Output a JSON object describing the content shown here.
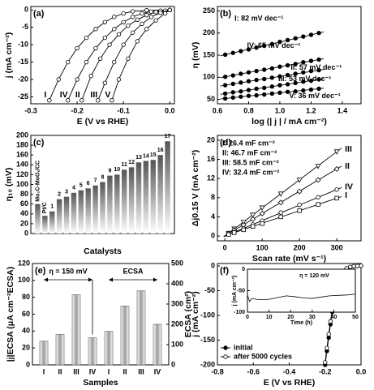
{
  "chart_data": [
    {
      "type": "line",
      "label": "(a)",
      "xlabel": "E (V vs RHE)",
      "ylabel": "j (mA cm⁻²)",
      "xlim": [
        -0.3,
        0.01
      ],
      "xticks": [
        -0.3,
        -0.2,
        -0.1,
        {
          "value": 0,
          "label": "0.0"
        }
      ],
      "ylim": [
        -27,
        1
      ],
      "yticks": [
        -25,
        -20,
        -15,
        -10,
        -5,
        0
      ],
      "series": [
        {
          "name": "I",
          "color": "#000",
          "marker": "open-circle",
          "x": [
            -0.26,
            -0.24,
            -0.22,
            -0.2,
            -0.18,
            -0.16,
            -0.14,
            -0.12,
            -0.1,
            -0.08,
            -0.05,
            0
          ],
          "values": [
            -26,
            -20,
            -15,
            -11,
            -8,
            -5.5,
            -3.5,
            -2,
            -1,
            -0.4,
            -0.1,
            0
          ]
        },
        {
          "name": "IV",
          "color": "#000",
          "marker": "open-circle",
          "x": [
            -0.22,
            -0.2,
            -0.18,
            -0.16,
            -0.14,
            -0.12,
            -0.1,
            -0.08,
            -0.06,
            -0.04,
            -0.02,
            0
          ],
          "values": [
            -26,
            -20,
            -15,
            -11,
            -8,
            -5.5,
            -3.5,
            -2,
            -1,
            -0.5,
            -0.2,
            0
          ]
        },
        {
          "name": "II",
          "color": "#000",
          "marker": "open-circle",
          "x": [
            -0.19,
            -0.17,
            -0.15,
            -0.13,
            -0.11,
            -0.09,
            -0.07,
            -0.05,
            -0.03,
            -0.01,
            0
          ],
          "values": [
            -26,
            -19,
            -14,
            -10,
            -7,
            -4.5,
            -2.8,
            -1.5,
            -0.6,
            -0.2,
            0
          ]
        },
        {
          "name": "III",
          "color": "#000",
          "marker": "open-circle",
          "x": [
            -0.155,
            -0.14,
            -0.12,
            -0.1,
            -0.08,
            -0.06,
            -0.04,
            -0.02,
            0
          ],
          "values": [
            -26,
            -21,
            -15,
            -10,
            -6.5,
            -4,
            -2,
            -0.8,
            0
          ]
        },
        {
          "name": "V",
          "color": "#000",
          "marker": "open-circle",
          "x": [
            -0.125,
            -0.11,
            -0.09,
            -0.07,
            -0.05,
            -0.03,
            -0.01,
            0
          ],
          "values": [
            -26,
            -20,
            -14,
            -9,
            -5.5,
            -3,
            -1,
            0
          ]
        }
      ]
    },
    {
      "type": "scatter",
      "label": "(b)",
      "xlabel": "log (| j | / mA cm⁻²)",
      "ylabel": "η (mV)",
      "xlim": [
        0.6,
        1.52
      ],
      "xticks": [
        0.6,
        0.8,
        {
          "value": 1,
          "label": "1.0"
        },
        1.2,
        1.4
      ],
      "ylim": [
        40,
        260
      ],
      "yticks": [
        50,
        100,
        150,
        200,
        250
      ],
      "x": [
        0.65,
        0.7,
        0.75,
        0.8,
        0.85,
        0.9,
        0.95,
        1,
        1.05,
        1.1,
        1.15,
        1.2,
        1.25
      ],
      "annotations": [
        "I: 82 mV dec⁻¹",
        "IV: 65 mV dec⁻¹",
        "II: 57 mV dec⁻¹",
        "III: 53 mV dec⁻¹",
        "V: 36 mV dec⁻¹"
      ],
      "series": [
        {
          "color": "#000",
          "marker": "filled-circle",
          "values": [
            151,
            155,
            159,
            163,
            167,
            171,
            175,
            180,
            184,
            188,
            192,
            196,
            200
          ]
        },
        {
          "color": "#000",
          "marker": "filled-circle",
          "values": [
            101,
            104,
            108,
            111,
            114,
            117,
            120,
            124,
            127,
            130,
            134,
            137,
            140
          ]
        },
        {
          "color": "#000",
          "marker": "filled-circle",
          "values": [
            82,
            85,
            88,
            91,
            94,
            96,
            99,
            102,
            105,
            108,
            111,
            114,
            116
          ]
        },
        {
          "color": "#000",
          "marker": "filled-circle",
          "values": [
            63,
            66,
            68,
            71,
            74,
            76,
            79,
            82,
            84,
            87,
            90,
            92,
            95
          ]
        },
        {
          "color": "#000",
          "marker": "filled-circle",
          "values": [
            52,
            54,
            56,
            58,
            59,
            61,
            63,
            65,
            67,
            68,
            70,
            72,
            74
          ]
        }
      ]
    },
    {
      "type": "bar",
      "label": "(c)",
      "xlabel": "Catalysts",
      "ylabel": "η₁₀ (mV)",
      "color": "#555",
      "ylim": [
        0,
        200
      ],
      "yticks": [
        0,
        20,
        40,
        60,
        80,
        100,
        120,
        140,
        160,
        180,
        200
      ],
      "categories": [
        "Mo₂C-MoOₓ/CC",
        "Pt/C",
        "1",
        "2",
        "3",
        "4",
        "5",
        "6",
        "7",
        "8",
        "9",
        "10",
        "11",
        "12",
        "13",
        "14",
        "15",
        "16",
        "17"
      ],
      "values": [
        60,
        36,
        45,
        70,
        75,
        83,
        88,
        92,
        98,
        105,
        118,
        120,
        130,
        135,
        145,
        148,
        150,
        160,
        188
      ]
    },
    {
      "type": "scatter",
      "label": "(d)",
      "xlabel": "Scan rate (mV s⁻¹)",
      "ylabel": "Δj0.15 V (mA cm⁻²)",
      "xlim": [
        -20,
        365
      ],
      "xticks": [
        0,
        100,
        200,
        300
      ],
      "ylim": [
        -1,
        21
      ],
      "yticks": [
        0,
        4,
        8,
        12,
        16,
        20
      ],
      "x": [
        10,
        25,
        50,
        75,
        100,
        150,
        200,
        250,
        300
      ],
      "annotations": [
        "I: 26.4 mF cm⁻²",
        "II: 46.7 mF cm⁻²",
        "III: 58.5 mF cm⁻²",
        "IV: 32.4 mF cm⁻²"
      ],
      "series": [
        {
          "name": "III",
          "color": "#000",
          "marker": "triangle-down",
          "values": [
            0.6,
            1.5,
            2.9,
            4.4,
            5.9,
            8.8,
            11.7,
            14.6,
            17.6
          ]
        },
        {
          "name": "II",
          "color": "#000",
          "marker": "diamond",
          "values": [
            0.5,
            1.2,
            2.3,
            3.5,
            4.7,
            7,
            9.3,
            11.7,
            14
          ]
        },
        {
          "name": "IV",
          "color": "#000",
          "marker": "open-circle",
          "values": [
            0.3,
            0.8,
            1.6,
            2.4,
            3.2,
            4.9,
            6.5,
            8.1,
            9.7
          ]
        },
        {
          "name": "I",
          "color": "#000",
          "marker": "square",
          "values": [
            0.3,
            0.7,
            1.3,
            2,
            2.6,
            4,
            5.3,
            6.6,
            7.9
          ]
        }
      ]
    },
    {
      "type": "bar",
      "label": "(e)",
      "xlabel": "Samples",
      "ylabel": "|j|ECSA (μA cm⁻²ECSA)",
      "y2label": "ECSA (cm²)",
      "ylim": [
        0,
        120
      ],
      "yticks": [
        0,
        20,
        40,
        60,
        80,
        100,
        120
      ],
      "y2lim": [
        0,
        500
      ],
      "y2ticks": [
        0,
        100,
        200,
        300,
        400,
        500
      ],
      "annotations": [
        "η = 150 mV",
        "ECSA"
      ],
      "categories": [
        "I",
        "II",
        "III",
        "IV",
        "I",
        "II",
        "III",
        "IV"
      ],
      "series": [
        {
          "color": "#999",
          "values": [
            28,
            36,
            83,
            32,
            null,
            null,
            null,
            null
          ]
        },
        {
          "color": "#999",
          "axis": "y2",
          "values": [
            null,
            null,
            null,
            null,
            165,
            290,
            365,
            200
          ]
        }
      ]
    },
    {
      "type": "line",
      "label": "(f)",
      "xlabel": "E (V vs RHE)",
      "ylabel": "j (mA cm⁻²)",
      "legend": "lower left",
      "xlim": [
        -0.8,
        0
      ],
      "xticks": [
        -0.8,
        -0.6,
        -0.4,
        -0.2,
        {
          "value": 0,
          "label": "0.0"
        }
      ],
      "ylim": [
        -200,
        5
      ],
      "yticks": [
        -200,
        -150,
        -100,
        -50,
        0
      ],
      "x": [
        -0.2,
        -0.19,
        -0.18,
        -0.17,
        -0.16,
        -0.15,
        -0.14,
        -0.13,
        -0.12,
        -0.1,
        -0.08,
        -0.06,
        -0.04,
        -0.02,
        0
      ],
      "series": [
        {
          "name": "initial",
          "color": "#000",
          "marker": "filled-circle",
          "values": [
            -200,
            -172,
            -145,
            -118,
            -93,
            -70,
            -52,
            -37,
            -25,
            -11,
            -5,
            -2,
            -0.5,
            0,
            0.5
          ]
        },
        {
          "name": "after 5000 cycles",
          "color": "#000",
          "marker": "open-circle",
          "values": [
            -195,
            -166,
            -138,
            -112,
            -88,
            -66,
            -49,
            -34,
            -23,
            -10,
            -4.5,
            -1.8,
            -0.4,
            0,
            0.5
          ]
        }
      ],
      "inset": {
        "type": "line",
        "title": "η = 120 mV",
        "xlabel": "Time (h)",
        "ylabel": "j (mA cm⁻²)",
        "xlim": [
          0,
          50
        ],
        "xticks": [
          0,
          10,
          20,
          30,
          40,
          50
        ],
        "ylim": [
          -100,
          0
        ],
        "yticks": [
          -100,
          -50,
          0
        ],
        "x": [
          0,
          1,
          2,
          4,
          7,
          10,
          14,
          18,
          22,
          26,
          30,
          34,
          38,
          42,
          46,
          50
        ],
        "series": [
          {
            "color": "#000",
            "values": [
              -60,
              -75,
              -68,
              -70,
              -71,
              -70,
              -66,
              -62,
              -64,
              -67,
              -68,
              -65,
              -62,
              -61,
              -60,
              -58
            ]
          }
        ]
      }
    }
  ]
}
